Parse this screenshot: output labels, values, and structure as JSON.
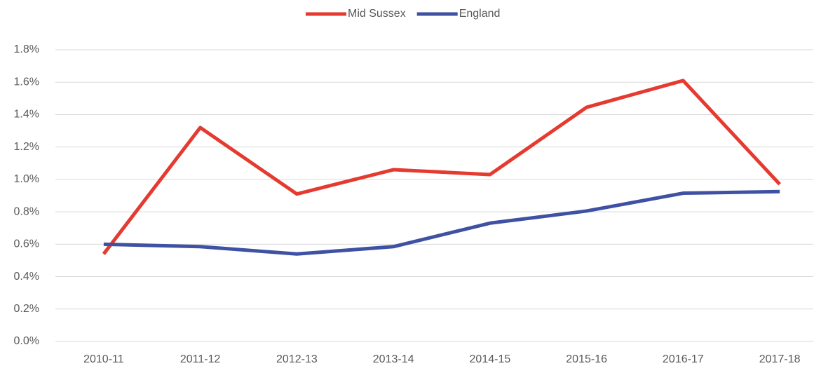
{
  "chart_data": {
    "type": "line",
    "categories": [
      "2010-11",
      "2011-12",
      "2012-13",
      "2013-14",
      "2014-15",
      "2015-16",
      "2016-17",
      "2017-18"
    ],
    "series": [
      {
        "name": "Mid Sussex",
        "color": "#e53a2f",
        "values": [
          0.54,
          1.32,
          0.91,
          1.06,
          1.03,
          1.445,
          1.61,
          0.97
        ]
      },
      {
        "name": "England",
        "color": "#3f51a3",
        "values": [
          0.6,
          0.585,
          0.54,
          0.585,
          0.73,
          0.805,
          0.915,
          0.925
        ]
      }
    ],
    "ylim": [
      0,
      1.8
    ],
    "yticks": [
      {
        "value": 0,
        "label": "0.0%"
      },
      {
        "value": 0.2,
        "label": "0.2%"
      },
      {
        "value": 0.4,
        "label": "0.4%"
      },
      {
        "value": 0.6,
        "label": "0.6%"
      },
      {
        "value": 0.8,
        "label": "0.8%"
      },
      {
        "value": 1.0,
        "label": "1.0%"
      },
      {
        "value": 1.2,
        "label": "1.2%"
      },
      {
        "value": 1.4,
        "label": "1.4%"
      },
      {
        "value": 1.6,
        "label": "1.6%"
      },
      {
        "value": 1.8,
        "label": "1.8%"
      }
    ],
    "grid": true,
    "legend": "top"
  }
}
